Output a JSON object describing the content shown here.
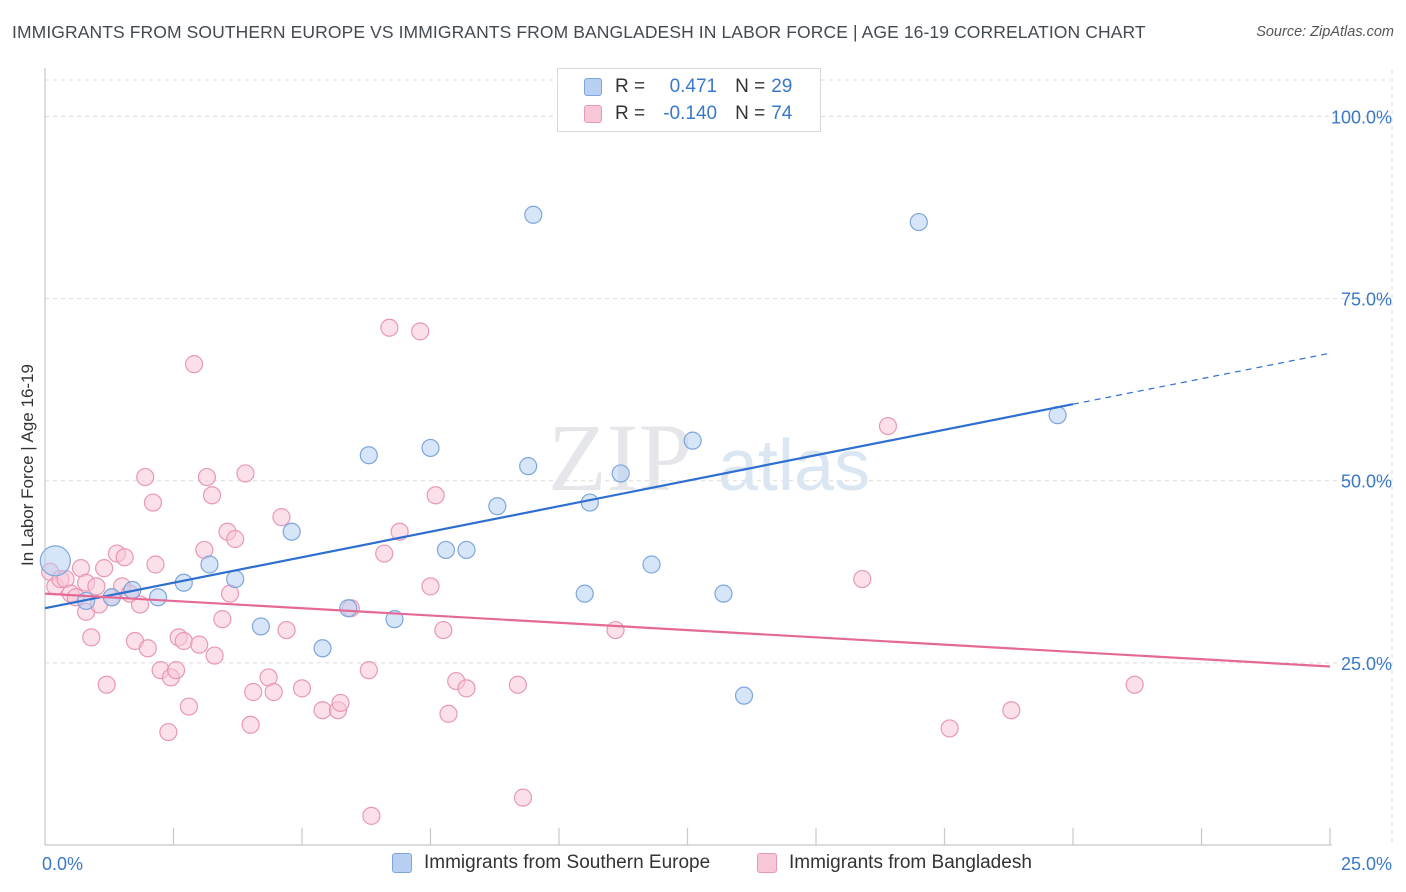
{
  "title": "IMMIGRANTS FROM SOUTHERN EUROPE VS IMMIGRANTS FROM BANGLADESH IN LABOR FORCE | AGE 16-19 CORRELATION CHART",
  "source": "Source: ZipAtlas.com",
  "watermark": {
    "zip": "ZIP",
    "atlas": "atlas"
  },
  "legend": {
    "r_label": "R =",
    "n_label": "N =",
    "series1": {
      "r": "0.471",
      "n": "29"
    },
    "series2": {
      "r": "-0.140",
      "n": "74"
    }
  },
  "colors": {
    "blue_fill": "#b7d0f2",
    "blue_stroke": "#7ea6dd",
    "blue_line": "#2f6fcf",
    "pink_fill": "#f8c7d7",
    "pink_stroke": "#e998b4",
    "pink_line": "#e46a95",
    "tick_label": "#3a78c9",
    "grid": "#dcdcdc"
  },
  "chart_data": {
    "type": "scatter",
    "title": "IMMIGRANTS FROM SOUTHERN EUROPE VS IMMIGRANTS FROM BANGLADESH IN LABOR FORCE | AGE 16-19 CORRELATION CHART",
    "xlabel": "",
    "ylabel": "In Labor Force | Age 16-19",
    "xlim": [
      0,
      25
    ],
    "ylim": [
      0,
      105
    ],
    "x_tick_labels": [
      {
        "value": 0,
        "label": "0.0%"
      },
      {
        "value": 25,
        "label": "25.0%"
      }
    ],
    "x_minor_ticks": [
      2.5,
      5,
      7.5,
      10,
      12.5,
      15,
      17.5,
      20,
      22.5,
      25
    ],
    "y_ticks": [
      {
        "value": 25,
        "label": "25.0%"
      },
      {
        "value": 50,
        "label": "50.0%"
      },
      {
        "value": 75,
        "label": "75.0%"
      },
      {
        "value": 100,
        "label": "100.0%"
      }
    ],
    "grid": true,
    "series": [
      {
        "name": "Immigrants from Southern Europe",
        "color": "blue",
        "r": 0.471,
        "n": 29,
        "trend": {
          "x0": 0,
          "y0": 32.5,
          "x1": 20,
          "y1": 60.5,
          "dash_to_x": 25,
          "dash_to_y": 67.5
        },
        "points": [
          {
            "x": 0.2,
            "y": 39,
            "size": "large"
          },
          {
            "x": 0.8,
            "y": 33.5
          },
          {
            "x": 1.3,
            "y": 34
          },
          {
            "x": 1.7,
            "y": 35
          },
          {
            "x": 2.2,
            "y": 34
          },
          {
            "x": 2.7,
            "y": 36
          },
          {
            "x": 3.2,
            "y": 38.5
          },
          {
            "x": 3.7,
            "y": 36.5
          },
          {
            "x": 4.2,
            "y": 30
          },
          {
            "x": 4.8,
            "y": 43
          },
          {
            "x": 5.4,
            "y": 27
          },
          {
            "x": 5.9,
            "y": 32.5
          },
          {
            "x": 6.3,
            "y": 53.5
          },
          {
            "x": 6.8,
            "y": 31
          },
          {
            "x": 7.5,
            "y": 54.5
          },
          {
            "x": 7.8,
            "y": 40.5
          },
          {
            "x": 8.2,
            "y": 40.5
          },
          {
            "x": 8.8,
            "y": 46.5
          },
          {
            "x": 9.4,
            "y": 52
          },
          {
            "x": 9.5,
            "y": 86.5
          },
          {
            "x": 10.6,
            "y": 47
          },
          {
            "x": 11.2,
            "y": 51
          },
          {
            "x": 10.5,
            "y": 34.5
          },
          {
            "x": 11.8,
            "y": 38.5
          },
          {
            "x": 12.6,
            "y": 55.5
          },
          {
            "x": 13.2,
            "y": 34.5
          },
          {
            "x": 13.6,
            "y": 20.5
          },
          {
            "x": 17,
            "y": 85.5
          },
          {
            "x": 19.7,
            "y": 59
          }
        ]
      },
      {
        "name": "Immigrants from Bangladesh",
        "color": "pink",
        "r": -0.14,
        "n": 74,
        "trend": {
          "x0": 0,
          "y0": 34.5,
          "x1": 25,
          "y1": 24.5
        },
        "points": [
          {
            "x": 0.1,
            "y": 37.5
          },
          {
            "x": 0.2,
            "y": 35.5
          },
          {
            "x": 0.3,
            "y": 36.5
          },
          {
            "x": 0.4,
            "y": 36.5
          },
          {
            "x": 0.5,
            "y": 34.5
          },
          {
            "x": 0.6,
            "y": 34
          },
          {
            "x": 0.7,
            "y": 38
          },
          {
            "x": 0.8,
            "y": 36
          },
          {
            "x": 0.8,
            "y": 32
          },
          {
            "x": 0.9,
            "y": 28.5
          },
          {
            "x": 1.0,
            "y": 35.5
          },
          {
            "x": 1.05,
            "y": 33
          },
          {
            "x": 1.15,
            "y": 38
          },
          {
            "x": 1.2,
            "y": 22
          },
          {
            "x": 1.3,
            "y": 34
          },
          {
            "x": 1.4,
            "y": 40
          },
          {
            "x": 1.5,
            "y": 35.5
          },
          {
            "x": 1.55,
            "y": 39.5
          },
          {
            "x": 1.65,
            "y": 34.5
          },
          {
            "x": 1.75,
            "y": 28
          },
          {
            "x": 1.85,
            "y": 33
          },
          {
            "x": 1.95,
            "y": 50.5
          },
          {
            "x": 2.0,
            "y": 27
          },
          {
            "x": 2.1,
            "y": 47
          },
          {
            "x": 2.15,
            "y": 38.5
          },
          {
            "x": 2.25,
            "y": 24
          },
          {
            "x": 2.4,
            "y": 15.5
          },
          {
            "x": 2.45,
            "y": 23
          },
          {
            "x": 2.55,
            "y": 24
          },
          {
            "x": 2.6,
            "y": 28.5
          },
          {
            "x": 2.7,
            "y": 28
          },
          {
            "x": 2.8,
            "y": 19
          },
          {
            "x": 2.9,
            "y": 66
          },
          {
            "x": 3.0,
            "y": 27.5
          },
          {
            "x": 3.1,
            "y": 40.5
          },
          {
            "x": 3.15,
            "y": 50.5
          },
          {
            "x": 3.25,
            "y": 48
          },
          {
            "x": 3.3,
            "y": 26
          },
          {
            "x": 3.45,
            "y": 31
          },
          {
            "x": 3.55,
            "y": 43
          },
          {
            "x": 3.6,
            "y": 34.5
          },
          {
            "x": 3.7,
            "y": 42
          },
          {
            "x": 3.9,
            "y": 51
          },
          {
            "x": 4.0,
            "y": 16.5
          },
          {
            "x": 4.05,
            "y": 21
          },
          {
            "x": 4.35,
            "y": 23
          },
          {
            "x": 4.45,
            "y": 21
          },
          {
            "x": 4.6,
            "y": 45
          },
          {
            "x": 4.7,
            "y": 29.5
          },
          {
            "x": 5.0,
            "y": 21.5
          },
          {
            "x": 5.4,
            "y": 18.5
          },
          {
            "x": 5.7,
            "y": 18.5
          },
          {
            "x": 5.75,
            "y": 19.5
          },
          {
            "x": 5.95,
            "y": 32.5
          },
          {
            "x": 6.3,
            "y": 24
          },
          {
            "x": 6.35,
            "y": 4
          },
          {
            "x": 6.6,
            "y": 40
          },
          {
            "x": 6.7,
            "y": 71
          },
          {
            "x": 6.9,
            "y": 43
          },
          {
            "x": 7.3,
            "y": 70.5
          },
          {
            "x": 7.5,
            "y": 35.5
          },
          {
            "x": 7.6,
            "y": 48
          },
          {
            "x": 7.75,
            "y": 29.5
          },
          {
            "x": 7.85,
            "y": 18
          },
          {
            "x": 8.0,
            "y": 22.5
          },
          {
            "x": 8.2,
            "y": 21.5
          },
          {
            "x": 9.2,
            "y": 22
          },
          {
            "x": 9.3,
            "y": 6.5
          },
          {
            "x": 11.1,
            "y": 29.5
          },
          {
            "x": 15.9,
            "y": 36.5
          },
          {
            "x": 16.4,
            "y": 57.5
          },
          {
            "x": 17.6,
            "y": 16
          },
          {
            "x": 18.8,
            "y": 18.5
          },
          {
            "x": 21.2,
            "y": 22
          }
        ]
      }
    ]
  }
}
